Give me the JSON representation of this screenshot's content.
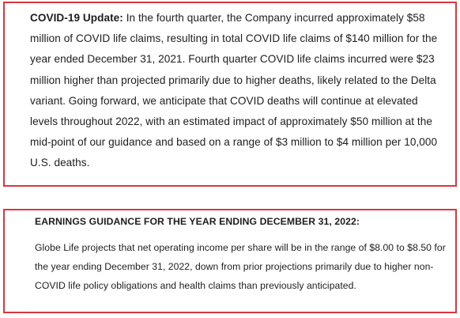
{
  "covid_update": {
    "label": "COVID-19 Update:",
    "body": " In the fourth quarter, the Company incurred approximately $58 million of COVID life claims, resulting in total COVID life claims of $140 million for the year ended December 31, 2021. Fourth quarter COVID life claims incurred were $23 million higher than projected primarily due to higher deaths, likely related to the Delta variant. Going forward, we anticipate that COVID deaths will continue at elevated levels throughout 2022, with an estimated impact of approximately $50 million at the mid-point of our guidance and based on a range of $3 million to $4 million per 10,000 U.S. deaths."
  },
  "earnings_guidance": {
    "heading": "EARNINGS GUIDANCE FOR THE YEAR ENDING DECEMBER 31, 2022:",
    "body": "Globe Life projects that net operating income per share will be in the range of $8.00 to $8.50 for the year ending December 31, 2022, down from prior projections primarily due to higher non-COVID life policy obligations and health claims than previously anticipated."
  },
  "colors": {
    "border": "#d9363e",
    "text": "#1d1d1d"
  }
}
